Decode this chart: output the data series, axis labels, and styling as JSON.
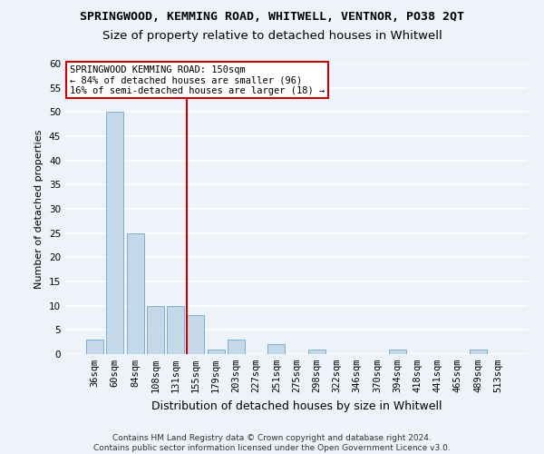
{
  "title": "SPRINGWOOD, KEMMING ROAD, WHITWELL, VENTNOR, PO38 2QT",
  "subtitle": "Size of property relative to detached houses in Whitwell",
  "xlabel": "Distribution of detached houses by size in Whitwell",
  "ylabel": "Number of detached properties",
  "footnote": "Contains HM Land Registry data © Crown copyright and database right 2024.\nContains public sector information licensed under the Open Government Licence v3.0.",
  "categories": [
    "36sqm",
    "60sqm",
    "84sqm",
    "108sqm",
    "131sqm",
    "155sqm",
    "179sqm",
    "203sqm",
    "227sqm",
    "251sqm",
    "275sqm",
    "298sqm",
    "322sqm",
    "346sqm",
    "370sqm",
    "394sqm",
    "418sqm",
    "441sqm",
    "465sqm",
    "489sqm",
    "513sqm"
  ],
  "values": [
    3,
    50,
    25,
    10,
    10,
    8,
    1,
    3,
    0,
    2,
    0,
    1,
    0,
    0,
    0,
    1,
    0,
    0,
    0,
    1,
    0
  ],
  "bar_color": "#c5d8e8",
  "bar_edge_color": "#7bafd4",
  "vline_x_index": 5,
  "vline_color": "#cc0000",
  "annotation_text": "SPRINGWOOD KEMMING ROAD: 150sqm\n← 84% of detached houses are smaller (96)\n16% of semi-detached houses are larger (18) →",
  "annotation_box_color": "#ffffff",
  "annotation_box_edge_color": "#cc0000",
  "ylim": [
    0,
    60
  ],
  "yticks": [
    0,
    5,
    10,
    15,
    20,
    25,
    30,
    35,
    40,
    45,
    50,
    55,
    60
  ],
  "background_color": "#eef2f9",
  "grid_color": "#ffffff",
  "title_fontsize": 9.5,
  "subtitle_fontsize": 9.5,
  "xlabel_fontsize": 9,
  "ylabel_fontsize": 8,
  "tick_fontsize": 7.5,
  "footnote_fontsize": 6.5
}
